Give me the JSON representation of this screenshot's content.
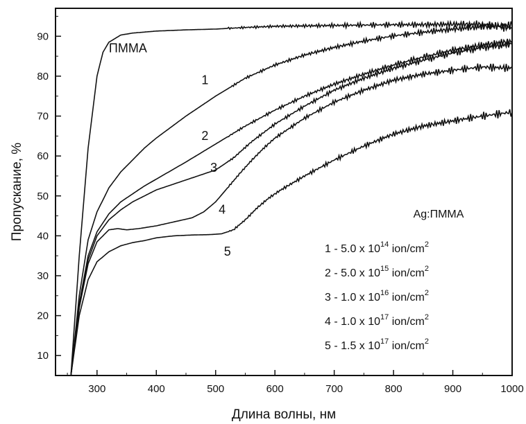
{
  "chart_data": {
    "type": "line",
    "xlabel": "Длина волны, нм",
    "ylabel": "Пропускание, %",
    "xlim": [
      230,
      1000
    ],
    "ylim": [
      5,
      97
    ],
    "xticks": [
      300,
      400,
      500,
      600,
      700,
      800,
      900,
      1000
    ],
    "yticks": [
      10,
      20,
      30,
      40,
      50,
      60,
      70,
      80,
      90
    ],
    "legend_title": "Ag:ПММА",
    "legend_placement": "bottom-right",
    "legend_entries": [
      {
        "id": "1",
        "prefix": "1 - 5.0 x 10",
        "exp": "14",
        "unit": " ion/cm",
        "unit_exp": "2"
      },
      {
        "id": "2",
        "prefix": "2 - 5.0 x 10",
        "exp": "15",
        "unit": " ion/cm",
        "unit_exp": "2"
      },
      {
        "id": "3",
        "prefix": "3 - 1.0 x 10",
        "exp": "16",
        "unit": " ion/cm",
        "unit_exp": "2"
      },
      {
        "id": "4",
        "prefix": "4 - 1.0 x 10",
        "exp": "17",
        "unit": " ion/cm",
        "unit_exp": "2"
      },
      {
        "id": "5",
        "prefix": "5 - 1.5 x 10",
        "exp": "17",
        "unit": " ion/cm",
        "unit_exp": "2"
      }
    ],
    "series": [
      {
        "name": "ПММА",
        "label_at": [
          320,
          86
        ],
        "x": [
          256,
          270,
          285,
          300,
          310,
          320,
          340,
          360,
          400,
          450,
          500,
          550,
          600,
          650,
          700,
          750,
          800,
          850,
          900,
          950,
          1000
        ],
        "y": [
          5,
          35,
          62,
          80,
          86,
          88.5,
          90.3,
          90.8,
          91.3,
          91.6,
          91.8,
          92.2,
          92.5,
          92.6,
          92.7,
          92.8,
          92.9,
          92.9,
          93,
          93,
          92
        ]
      },
      {
        "name": "1",
        "label_at": [
          482,
          78
        ],
        "x": [
          256,
          270,
          285,
          300,
          320,
          340,
          360,
          380,
          400,
          450,
          500,
          550,
          600,
          650,
          700,
          750,
          800,
          850,
          900,
          950,
          1000
        ],
        "y": [
          5,
          25,
          39,
          46,
          52,
          56,
          59,
          62,
          64.5,
          70,
          75,
          79.5,
          82.8,
          85.3,
          87.2,
          88.8,
          90.1,
          91,
          91.8,
          92.4,
          92.8
        ]
      },
      {
        "name": "2",
        "label_at": [
          482,
          64
        ],
        "x": [
          256,
          270,
          285,
          300,
          320,
          340,
          360,
          380,
          400,
          450,
          500,
          550,
          600,
          650,
          700,
          750,
          800,
          850,
          900,
          950,
          1000
        ],
        "y": [
          5,
          23,
          35,
          41,
          45.5,
          48.5,
          50.5,
          52.5,
          54.2,
          58.5,
          63,
          67.5,
          71.5,
          75,
          78,
          80.5,
          82.8,
          84.8,
          86.5,
          87.8,
          88.8
        ]
      },
      {
        "name": "3",
        "label_at": [
          497,
          56
        ],
        "x": [
          256,
          270,
          285,
          300,
          320,
          340,
          360,
          380,
          400,
          450,
          500,
          530,
          560,
          600,
          650,
          700,
          750,
          800,
          850,
          900,
          950,
          1000
        ],
        "y": [
          5,
          22,
          34,
          40,
          44,
          46.5,
          48.5,
          50,
          51.5,
          54,
          56.5,
          59.5,
          63.5,
          68,
          72.5,
          76.5,
          79.5,
          82,
          84,
          85.8,
          87.2,
          88
        ]
      },
      {
        "name": "4",
        "label_at": [
          511,
          45.5
        ],
        "x": [
          256,
          270,
          285,
          300,
          320,
          335,
          350,
          370,
          400,
          430,
          460,
          480,
          500,
          520,
          540,
          560,
          580,
          600,
          650,
          700,
          750,
          800,
          850,
          900,
          950,
          1000
        ],
        "y": [
          5,
          22,
          33,
          38.5,
          41.5,
          41.8,
          41.5,
          41.8,
          42.5,
          43.5,
          44.5,
          46,
          48.5,
          52,
          55.5,
          58.8,
          61.8,
          64.5,
          69.5,
          73.5,
          76.5,
          79,
          80.5,
          81.5,
          82.3,
          82
        ]
      },
      {
        "name": "5",
        "label_at": [
          520,
          35
        ],
        "x": [
          256,
          270,
          285,
          300,
          320,
          340,
          360,
          380,
          400,
          430,
          460,
          490,
          510,
          530,
          550,
          570,
          590,
          610,
          650,
          700,
          750,
          800,
          850,
          900,
          950,
          1000
        ],
        "y": [
          5,
          20,
          29,
          33.5,
          36,
          37.5,
          38.3,
          38.8,
          39.5,
          40,
          40.2,
          40.3,
          40.5,
          41.5,
          44,
          47,
          49.5,
          51.5,
          55,
          59,
          62.5,
          65.5,
          67.5,
          68.8,
          70,
          71
        ]
      }
    ]
  }
}
